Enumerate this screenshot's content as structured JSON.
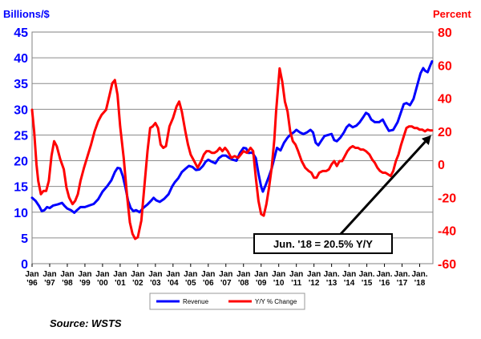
{
  "source_note": "Source: WSTS",
  "chart_data": {
    "type": "line",
    "title": "",
    "left_axis": {
      "label": "Billions/$",
      "range": [
        0,
        45
      ],
      "ticks": [
        "0",
        "5",
        "10",
        "15",
        "20",
        "25",
        "30",
        "35",
        "40",
        "45"
      ],
      "color": "#0000ff"
    },
    "right_axis": {
      "label": "Percent",
      "range": [
        -60,
        80
      ],
      "ticks": [
        "-60",
        "-40",
        "-20",
        "0",
        "20",
        "40",
        "60",
        "80"
      ],
      "color": "#ff0000"
    },
    "x_axis": {
      "range": [
        1996,
        2018.75
      ],
      "tick_labels": [
        [
          "Jan",
          "'96"
        ],
        [
          "Jan",
          "'97"
        ],
        [
          "Jan",
          "'98"
        ],
        [
          "Jan",
          "'99"
        ],
        [
          "Jan",
          "'00"
        ],
        [
          "Jan",
          "'01"
        ],
        [
          "Jan",
          "'02"
        ],
        [
          "Jan",
          "'03"
        ],
        [
          "Jan",
          "'04"
        ],
        [
          "Jan",
          "'05"
        ],
        [
          "Jan",
          "'06"
        ],
        [
          "Jan",
          "'07"
        ],
        [
          "Jan",
          "'08"
        ],
        [
          "Jan",
          "'09"
        ],
        [
          "Jan",
          "'10"
        ],
        [
          "Jan",
          "'11"
        ],
        [
          "Jan",
          "'12"
        ],
        [
          "Jan.",
          "'13"
        ],
        [
          "Jan",
          "'14"
        ],
        [
          "Jan.",
          "'15"
        ],
        [
          "Jan.",
          "'16"
        ],
        [
          "Jan.",
          "'17"
        ],
        [
          "Jan.",
          "'18"
        ]
      ]
    },
    "grid": true,
    "legend_position": "bottom-center",
    "series": [
      {
        "name": "Revenue",
        "axis": "left",
        "color": "#0000ff",
        "points": [
          [
            1996.0,
            12.8
          ],
          [
            1996.2,
            12.2
          ],
          [
            1996.4,
            11.2
          ],
          [
            1996.55,
            10.2
          ],
          [
            1996.7,
            10.4
          ],
          [
            1996.85,
            11.0
          ],
          [
            1997.0,
            10.8
          ],
          [
            1997.2,
            11.3
          ],
          [
            1997.45,
            11.5
          ],
          [
            1997.7,
            11.8
          ],
          [
            1997.85,
            11.2
          ],
          [
            1998.0,
            10.7
          ],
          [
            1998.2,
            10.4
          ],
          [
            1998.4,
            9.9
          ],
          [
            1998.55,
            10.4
          ],
          [
            1998.75,
            11.0
          ],
          [
            1999.0,
            11.0
          ],
          [
            1999.25,
            11.3
          ],
          [
            1999.5,
            11.6
          ],
          [
            1999.75,
            12.5
          ],
          [
            2000.0,
            14.0
          ],
          [
            2000.25,
            15.0
          ],
          [
            2000.5,
            16.2
          ],
          [
            2000.7,
            17.8
          ],
          [
            2000.85,
            18.6
          ],
          [
            2001.0,
            18.5
          ],
          [
            2001.15,
            17.0
          ],
          [
            2001.3,
            14.8
          ],
          [
            2001.45,
            12.2
          ],
          [
            2001.6,
            10.8
          ],
          [
            2001.75,
            10.2
          ],
          [
            2001.9,
            10.4
          ],
          [
            2002.1,
            10.0
          ],
          [
            2002.3,
            10.8
          ],
          [
            2002.55,
            11.5
          ],
          [
            2002.75,
            12.2
          ],
          [
            2002.9,
            12.8
          ],
          [
            2003.05,
            12.3
          ],
          [
            2003.25,
            12.0
          ],
          [
            2003.5,
            12.6
          ],
          [
            2003.75,
            13.5
          ],
          [
            2003.95,
            15.0
          ],
          [
            2004.1,
            15.8
          ],
          [
            2004.3,
            16.6
          ],
          [
            2004.5,
            17.8
          ],
          [
            2004.7,
            18.4
          ],
          [
            2004.9,
            19.0
          ],
          [
            2005.1,
            18.8
          ],
          [
            2005.3,
            18.2
          ],
          [
            2005.5,
            18.3
          ],
          [
            2005.7,
            19.0
          ],
          [
            2005.85,
            19.8
          ],
          [
            2006.0,
            20.2
          ],
          [
            2006.2,
            19.8
          ],
          [
            2006.4,
            19.5
          ],
          [
            2006.6,
            20.5
          ],
          [
            2006.8,
            21.0
          ],
          [
            2007.0,
            21.0
          ],
          [
            2007.2,
            20.5
          ],
          [
            2007.4,
            20.2
          ],
          [
            2007.6,
            20.0
          ],
          [
            2007.8,
            21.5
          ],
          [
            2008.0,
            22.5
          ],
          [
            2008.15,
            22.4
          ],
          [
            2008.3,
            21.5
          ],
          [
            2008.5,
            21.6
          ],
          [
            2008.7,
            20.5
          ],
          [
            2008.85,
            17.5
          ],
          [
            2009.0,
            15.0
          ],
          [
            2009.1,
            14.0
          ],
          [
            2009.25,
            15.2
          ],
          [
            2009.45,
            17.0
          ],
          [
            2009.6,
            18.5
          ],
          [
            2009.75,
            20.5
          ],
          [
            2009.9,
            22.5
          ],
          [
            2010.1,
            22.0
          ],
          [
            2010.3,
            23.5
          ],
          [
            2010.5,
            24.5
          ],
          [
            2010.7,
            25.2
          ],
          [
            2010.85,
            25.5
          ],
          [
            2011.0,
            26.0
          ],
          [
            2011.2,
            25.5
          ],
          [
            2011.4,
            25.2
          ],
          [
            2011.6,
            25.5
          ],
          [
            2011.8,
            26.0
          ],
          [
            2011.95,
            25.5
          ],
          [
            2012.1,
            23.5
          ],
          [
            2012.25,
            23.0
          ],
          [
            2012.4,
            23.8
          ],
          [
            2012.6,
            24.8
          ],
          [
            2012.8,
            25.0
          ],
          [
            2013.0,
            25.2
          ],
          [
            2013.15,
            24.0
          ],
          [
            2013.3,
            23.8
          ],
          [
            2013.5,
            24.5
          ],
          [
            2013.7,
            25.5
          ],
          [
            2013.85,
            26.5
          ],
          [
            2014.0,
            27.0
          ],
          [
            2014.2,
            26.5
          ],
          [
            2014.4,
            26.8
          ],
          [
            2014.6,
            27.5
          ],
          [
            2014.8,
            28.5
          ],
          [
            2014.95,
            29.3
          ],
          [
            2015.1,
            29.0
          ],
          [
            2015.25,
            28.0
          ],
          [
            2015.45,
            27.5
          ],
          [
            2015.7,
            27.5
          ],
          [
            2015.9,
            28.0
          ],
          [
            2016.05,
            27.0
          ],
          [
            2016.25,
            25.8
          ],
          [
            2016.5,
            26.0
          ],
          [
            2016.75,
            27.5
          ],
          [
            2016.95,
            29.5
          ],
          [
            2017.1,
            31.0
          ],
          [
            2017.25,
            31.2
          ],
          [
            2017.45,
            30.8
          ],
          [
            2017.65,
            32.0
          ],
          [
            2017.85,
            34.5
          ],
          [
            2018.05,
            37.0
          ],
          [
            2018.2,
            38.0
          ],
          [
            2018.3,
            37.5
          ],
          [
            2018.45,
            37.2
          ],
          [
            2018.6,
            38.5
          ],
          [
            2018.7,
            39.3
          ]
        ]
      },
      {
        "name": "Y/Y % Change",
        "axis": "right",
        "color": "#ff0000",
        "points": [
          [
            1996.0,
            33
          ],
          [
            1996.12,
            20
          ],
          [
            1996.25,
            0
          ],
          [
            1996.35,
            -10
          ],
          [
            1996.5,
            -18
          ],
          [
            1996.65,
            -16
          ],
          [
            1996.8,
            -16
          ],
          [
            1996.95,
            -10
          ],
          [
            1997.1,
            5
          ],
          [
            1997.25,
            14
          ],
          [
            1997.4,
            11
          ],
          [
            1997.6,
            3
          ],
          [
            1997.8,
            -3
          ],
          [
            1997.95,
            -14
          ],
          [
            1998.1,
            -20
          ],
          [
            1998.3,
            -24
          ],
          [
            1998.45,
            -22
          ],
          [
            1998.6,
            -18
          ],
          [
            1998.75,
            -10
          ],
          [
            1998.95,
            -2
          ],
          [
            1999.15,
            5
          ],
          [
            1999.35,
            12
          ],
          [
            1999.55,
            20
          ],
          [
            1999.75,
            26
          ],
          [
            1999.95,
            30
          ],
          [
            2000.2,
            33
          ],
          [
            2000.4,
            42
          ],
          [
            2000.55,
            49
          ],
          [
            2000.7,
            51
          ],
          [
            2000.85,
            42
          ],
          [
            2001.0,
            23
          ],
          [
            2001.2,
            4
          ],
          [
            2001.4,
            -20
          ],
          [
            2001.55,
            -35
          ],
          [
            2001.7,
            -42
          ],
          [
            2001.85,
            -45
          ],
          [
            2002.0,
            -44
          ],
          [
            2002.2,
            -34
          ],
          [
            2002.4,
            -10
          ],
          [
            2002.55,
            8
          ],
          [
            2002.7,
            22
          ],
          [
            2002.85,
            23
          ],
          [
            2003.0,
            25
          ],
          [
            2003.15,
            22
          ],
          [
            2003.3,
            12
          ],
          [
            2003.45,
            10
          ],
          [
            2003.6,
            11
          ],
          [
            2003.8,
            23
          ],
          [
            2004.0,
            28
          ],
          [
            2004.2,
            35
          ],
          [
            2004.35,
            38
          ],
          [
            2004.5,
            32
          ],
          [
            2004.7,
            20
          ],
          [
            2004.85,
            12
          ],
          [
            2005.0,
            6
          ],
          [
            2005.2,
            2
          ],
          [
            2005.4,
            -2
          ],
          [
            2005.6,
            2
          ],
          [
            2005.75,
            6
          ],
          [
            2005.9,
            8
          ],
          [
            2006.05,
            8
          ],
          [
            2006.2,
            7
          ],
          [
            2006.35,
            7
          ],
          [
            2006.5,
            8
          ],
          [
            2006.65,
            10
          ],
          [
            2006.8,
            8
          ],
          [
            2006.95,
            10
          ],
          [
            2007.1,
            8
          ],
          [
            2007.3,
            4
          ],
          [
            2007.5,
            5
          ],
          [
            2007.7,
            4
          ],
          [
            2007.85,
            6
          ],
          [
            2008.0,
            8
          ],
          [
            2008.2,
            7
          ],
          [
            2008.4,
            10
          ],
          [
            2008.55,
            8
          ],
          [
            2008.7,
            -8
          ],
          [
            2008.85,
            -22
          ],
          [
            2009.0,
            -30
          ],
          [
            2009.15,
            -31
          ],
          [
            2009.3,
            -24
          ],
          [
            2009.45,
            -14
          ],
          [
            2009.6,
            -2
          ],
          [
            2009.75,
            15
          ],
          [
            2009.85,
            32
          ],
          [
            2009.95,
            45
          ],
          [
            2010.05,
            58
          ],
          [
            2010.2,
            50
          ],
          [
            2010.35,
            38
          ],
          [
            2010.5,
            32
          ],
          [
            2010.65,
            20
          ],
          [
            2010.8,
            14
          ],
          [
            2010.95,
            12
          ],
          [
            2011.1,
            8
          ],
          [
            2011.3,
            2
          ],
          [
            2011.5,
            -2
          ],
          [
            2011.7,
            -4
          ],
          [
            2011.85,
            -5
          ],
          [
            2012.0,
            -8
          ],
          [
            2012.15,
            -8
          ],
          [
            2012.3,
            -5
          ],
          [
            2012.5,
            -4
          ],
          [
            2012.7,
            -4
          ],
          [
            2012.85,
            -3
          ],
          [
            2013.0,
            0
          ],
          [
            2013.15,
            2
          ],
          [
            2013.3,
            -1
          ],
          [
            2013.45,
            2
          ],
          [
            2013.6,
            2
          ],
          [
            2013.75,
            5
          ],
          [
            2013.9,
            8
          ],
          [
            2014.05,
            10
          ],
          [
            2014.2,
            11
          ],
          [
            2014.35,
            10
          ],
          [
            2014.5,
            10
          ],
          [
            2014.65,
            9
          ],
          [
            2014.8,
            9
          ],
          [
            2014.95,
            8
          ],
          [
            2015.15,
            6
          ],
          [
            2015.3,
            3
          ],
          [
            2015.45,
            1
          ],
          [
            2015.6,
            -2
          ],
          [
            2015.75,
            -4
          ],
          [
            2015.9,
            -5
          ],
          [
            2016.05,
            -5
          ],
          [
            2016.2,
            -6
          ],
          [
            2016.35,
            -7
          ],
          [
            2016.5,
            -4
          ],
          [
            2016.65,
            2
          ],
          [
            2016.8,
            6
          ],
          [
            2016.95,
            12
          ],
          [
            2017.1,
            17
          ],
          [
            2017.25,
            22
          ],
          [
            2017.4,
            23
          ],
          [
            2017.55,
            23
          ],
          [
            2017.7,
            22
          ],
          [
            2017.85,
            22
          ],
          [
            2018.0,
            21
          ],
          [
            2018.15,
            21
          ],
          [
            2018.3,
            20
          ],
          [
            2018.45,
            21
          ],
          [
            2018.6,
            20.5
          ],
          [
            2018.7,
            20.5
          ]
        ]
      }
    ],
    "annotation": {
      "text": "Jun. '18 = 20.5% Y/Y",
      "arrow_target": [
        2018.65,
        20.5
      ],
      "arrow_axis": "right"
    }
  }
}
